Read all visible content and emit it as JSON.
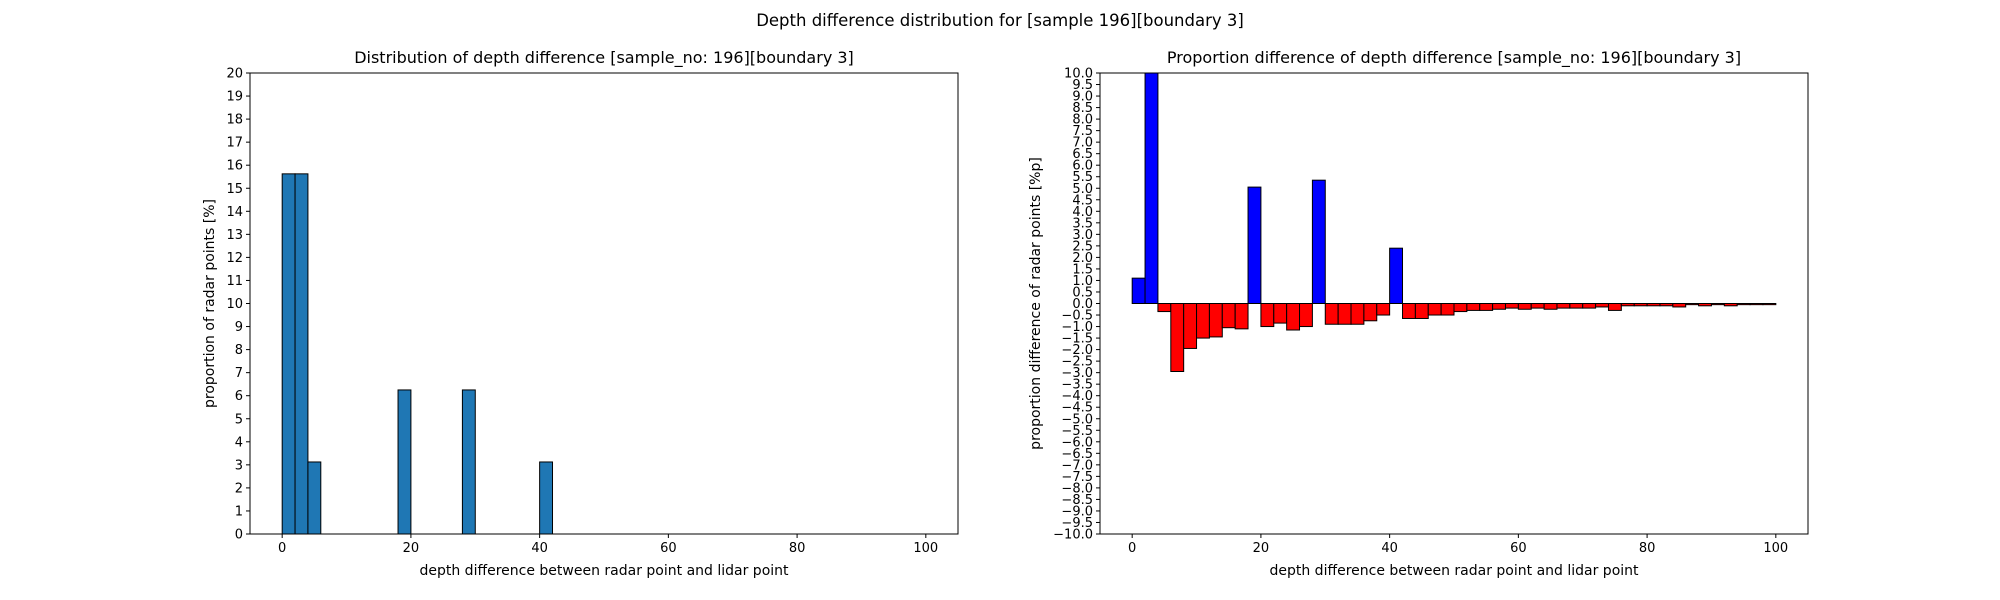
{
  "suptitle": "Depth difference distribution for [sample 196][boundary 3]",
  "colors": {
    "left_bar": "#1f77b4",
    "positive_bar": "#0000ff",
    "negative_bar": "#ff0000",
    "edge": "#000000"
  },
  "chart_data": [
    {
      "type": "bar",
      "title": "Distribution of depth difference [sample_no: 196][boundary 3]",
      "xlabel": "depth difference between radar point and lidar point",
      "ylabel": "proportion of radar points [%]",
      "xlim": [
        -5,
        105
      ],
      "ylim": [
        0,
        20
      ],
      "xticks": [
        0,
        20,
        40,
        60,
        80,
        100
      ],
      "yticks": [
        0,
        1,
        2,
        3,
        4,
        5,
        6,
        7,
        8,
        9,
        10,
        11,
        12,
        13,
        14,
        15,
        16,
        17,
        18,
        19,
        20
      ],
      "bin_width": 2,
      "bin_starts": [
        0,
        2,
        4,
        18,
        28,
        40
      ],
      "values": [
        15.625,
        15.625,
        3.125,
        6.25,
        6.25,
        3.125
      ],
      "grid": false
    },
    {
      "type": "bar",
      "title": "Proportion difference of depth difference [sample_no: 196][boundary 3]",
      "xlabel": "depth difference between radar point and lidar point",
      "ylabel": "proportion difference of radar points [%p]",
      "xlim": [
        -5,
        105
      ],
      "ylim": [
        -10,
        10
      ],
      "xticks": [
        0,
        20,
        40,
        60,
        80,
        100
      ],
      "ytick_step": 0.5,
      "bin_width": 2,
      "bin_starts": [
        0,
        2,
        4,
        6,
        8,
        10,
        12,
        14,
        16,
        18,
        20,
        22,
        24,
        26,
        28,
        30,
        32,
        34,
        36,
        38,
        40,
        42,
        44,
        46,
        48,
        50,
        52,
        54,
        56,
        58,
        60,
        62,
        64,
        66,
        68,
        70,
        72,
        74,
        76,
        78,
        80,
        82,
        84,
        86,
        88,
        90,
        92,
        94,
        96,
        98
      ],
      "values": [
        1.1,
        10.0,
        -0.35,
        -2.95,
        -1.95,
        -1.5,
        -1.45,
        -1.05,
        -1.1,
        5.05,
        -1.0,
        -0.85,
        -1.15,
        -1.0,
        5.35,
        -0.9,
        -0.9,
        -0.9,
        -0.75,
        -0.5,
        2.4,
        -0.65,
        -0.65,
        -0.5,
        -0.5,
        -0.35,
        -0.3,
        -0.3,
        -0.25,
        -0.2,
        -0.25,
        -0.2,
        -0.25,
        -0.2,
        -0.2,
        -0.2,
        -0.15,
        -0.3,
        -0.1,
        -0.1,
        -0.1,
        -0.1,
        -0.15,
        -0.05,
        -0.1,
        -0.05,
        -0.1,
        -0.05,
        -0.05,
        -0.05
      ],
      "grid": false
    }
  ]
}
